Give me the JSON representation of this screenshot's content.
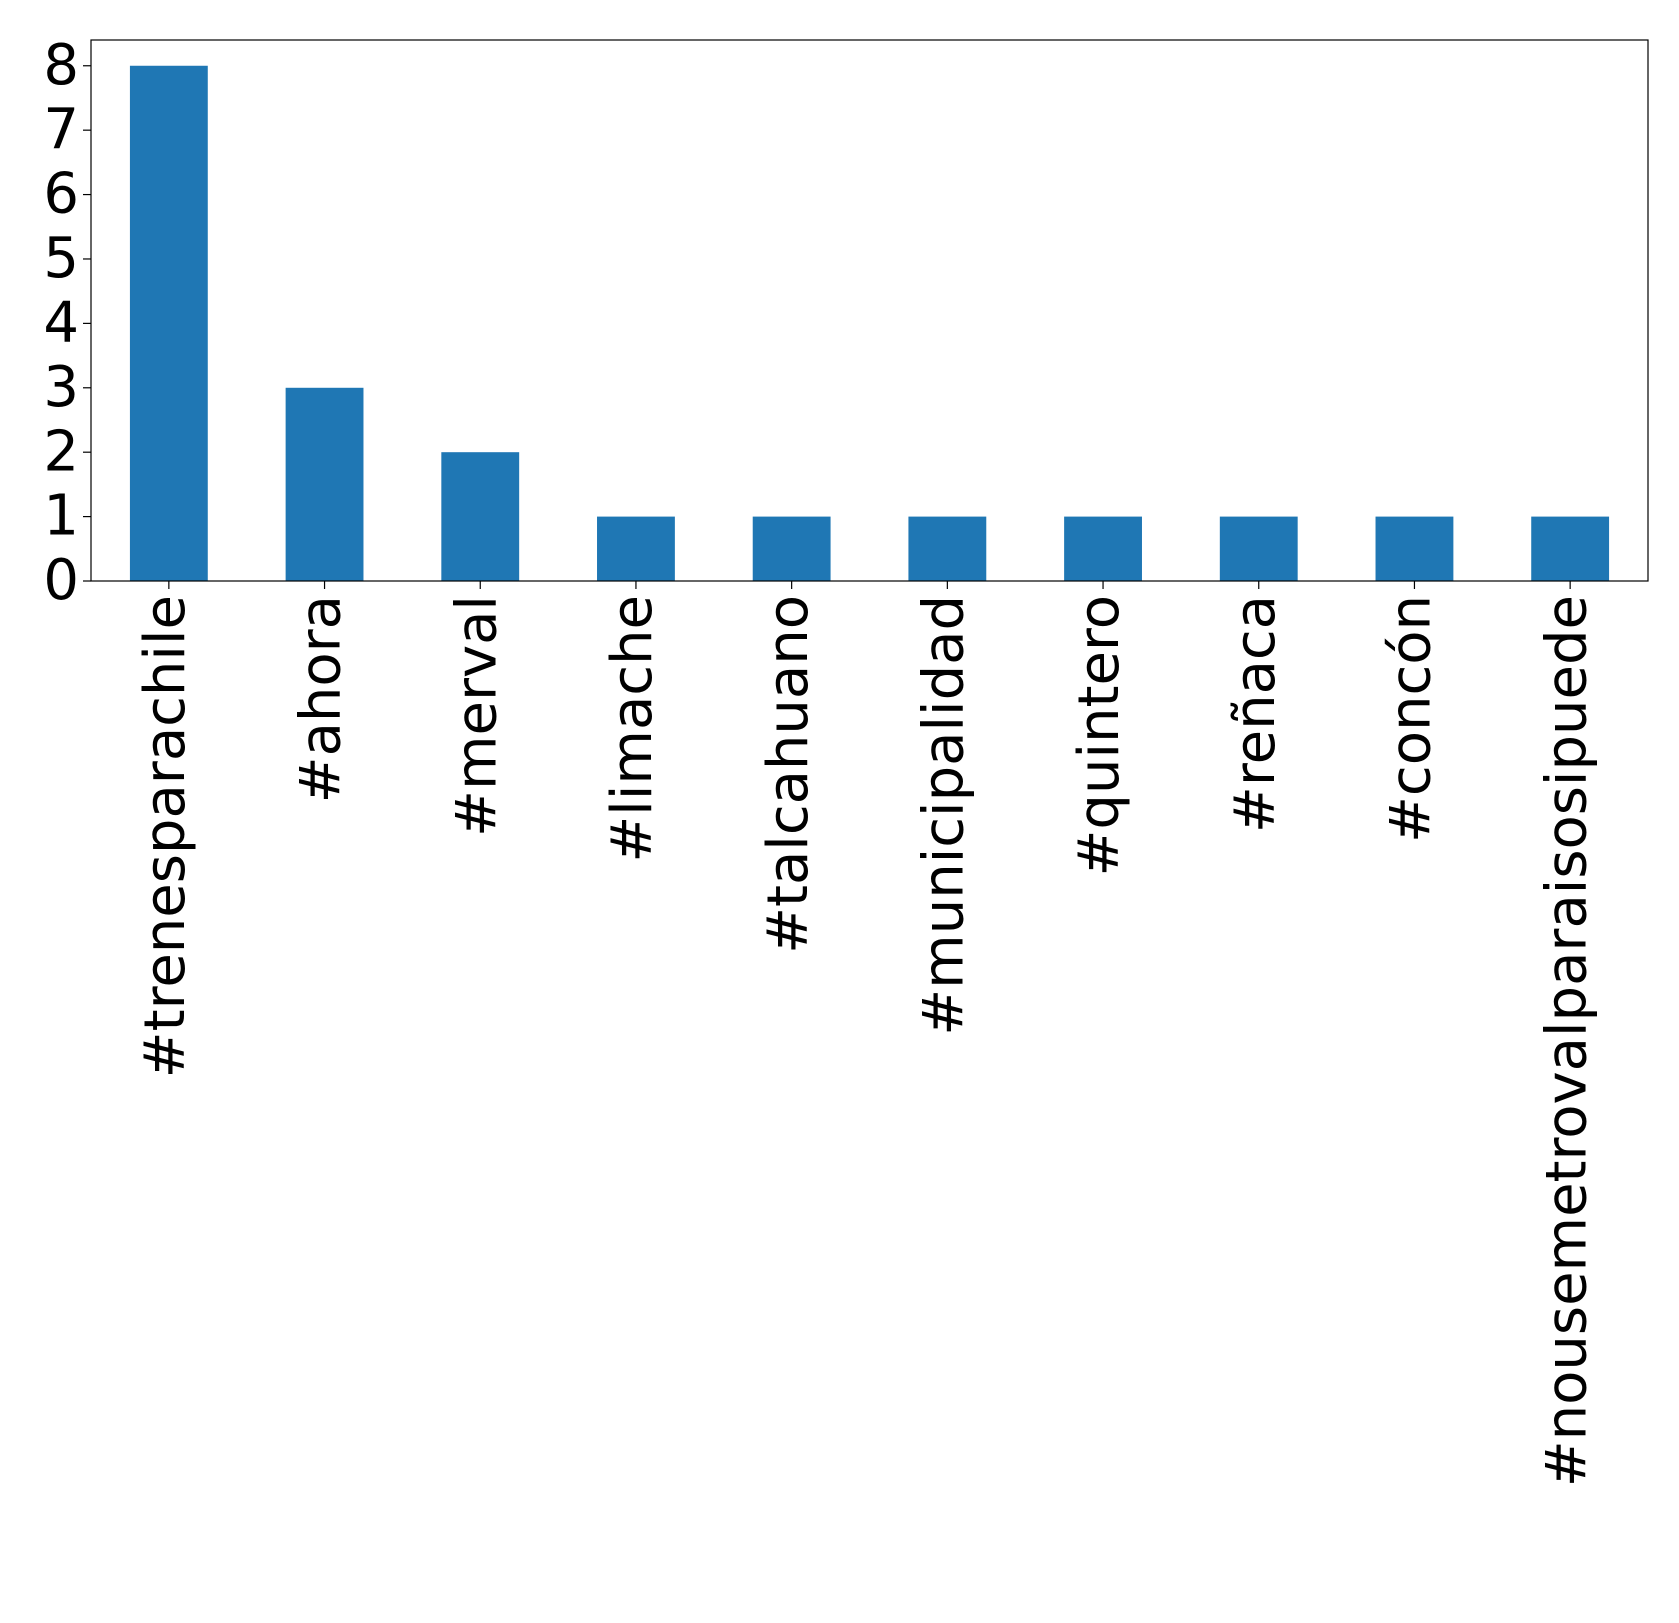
{
  "chart_data": {
    "type": "bar",
    "categories": [
      "#trenesparachile",
      "#ahora",
      "#merval",
      "#limache",
      "#talcahuano",
      "#municipalidad",
      "#quintero",
      "#reñaca",
      "#concón",
      "#nousemetrovalparaisosipuede"
    ],
    "values": [
      8,
      3,
      2,
      1,
      1,
      1,
      1,
      1,
      1,
      1
    ],
    "color": "#1f77b4",
    "ylim": [
      0,
      8.4
    ],
    "yticks": [
      0,
      1,
      2,
      3,
      4,
      5,
      6,
      7,
      8
    ],
    "grid": false
  }
}
